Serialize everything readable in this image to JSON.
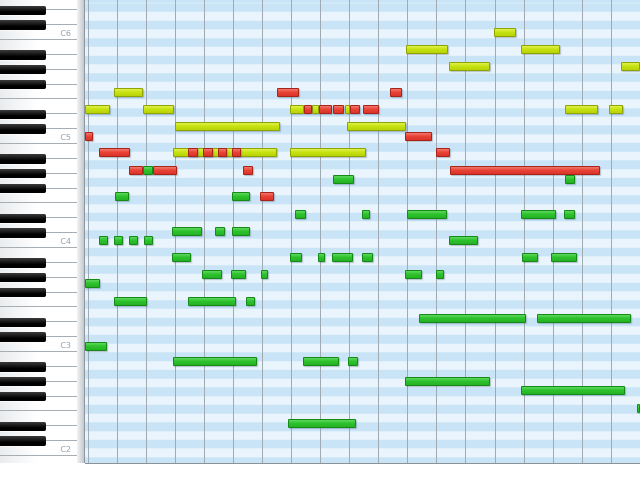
{
  "editor": {
    "title": "piano-roll-grid",
    "octave_labels": [
      "C6",
      "C5",
      "C4",
      "C3",
      "C2"
    ],
    "colors": {
      "note_yellow": "#c6e211",
      "note_yellow_border": "#8fa400",
      "note_red": "#e84436",
      "note_red_border": "#a8241a",
      "note_green": "#2dc32d",
      "note_green_border": "#168a16",
      "stripe_dark": "#c9e4f7",
      "stripe_light": "#e9f4fc",
      "grid_line": "#a0aab3",
      "white_key": "#ffffff",
      "black_key": "#000000",
      "octave_label_text": "#97a1ab"
    },
    "notes": {
      "yellow": [
        [
          494,
          28,
          22
        ],
        [
          406,
          45,
          42
        ],
        [
          521,
          45,
          39
        ],
        [
          449,
          62,
          41
        ],
        [
          621,
          62,
          19
        ],
        [
          114,
          88,
          29
        ],
        [
          85,
          105,
          25
        ],
        [
          143,
          105,
          31
        ],
        [
          290,
          105,
          14
        ],
        [
          312,
          105,
          7
        ],
        [
          345,
          105,
          5
        ],
        [
          565,
          105,
          33
        ],
        [
          609,
          105,
          14
        ],
        [
          175,
          122,
          105
        ],
        [
          347,
          122,
          59
        ],
        [
          173,
          148,
          104
        ],
        [
          290,
          148,
          76
        ]
      ],
      "red": [
        [
          277,
          88,
          22
        ],
        [
          390,
          88,
          12
        ],
        [
          304,
          105,
          8
        ],
        [
          319,
          105,
          13
        ],
        [
          333,
          105,
          11
        ],
        [
          350,
          105,
          10
        ],
        [
          363,
          105,
          16
        ],
        [
          85,
          132,
          8
        ],
        [
          405,
          132,
          27
        ],
        [
          99,
          148,
          31
        ],
        [
          188,
          148,
          10
        ],
        [
          203,
          148,
          10
        ],
        [
          218,
          148,
          9
        ],
        [
          232,
          148,
          9
        ],
        [
          436,
          148,
          14
        ],
        [
          129,
          166,
          14
        ],
        [
          153,
          166,
          24
        ],
        [
          243,
          166,
          10
        ],
        [
          450,
          166,
          150
        ],
        [
          260,
          192,
          14
        ]
      ],
      "green": [
        [
          143,
          166,
          10
        ],
        [
          333,
          175,
          21
        ],
        [
          565,
          175,
          10
        ],
        [
          115,
          192,
          14
        ],
        [
          232,
          192,
          18
        ],
        [
          295,
          210,
          11
        ],
        [
          362,
          210,
          8
        ],
        [
          407,
          210,
          40
        ],
        [
          521,
          210,
          35
        ],
        [
          564,
          210,
          11
        ],
        [
          172,
          227,
          30
        ],
        [
          215,
          227,
          10
        ],
        [
          232,
          227,
          18
        ],
        [
          99,
          236,
          9
        ],
        [
          114,
          236,
          9
        ],
        [
          129,
          236,
          9
        ],
        [
          144,
          236,
          9
        ],
        [
          449,
          236,
          29
        ],
        [
          172,
          253,
          19
        ],
        [
          290,
          253,
          12
        ],
        [
          318,
          253,
          7
        ],
        [
          332,
          253,
          21
        ],
        [
          362,
          253,
          11
        ],
        [
          522,
          253,
          16
        ],
        [
          551,
          253,
          26
        ],
        [
          202,
          270,
          20
        ],
        [
          231,
          270,
          15
        ],
        [
          261,
          270,
          7
        ],
        [
          405,
          270,
          17
        ],
        [
          436,
          270,
          8
        ],
        [
          85,
          279,
          15
        ],
        [
          114,
          297,
          33
        ],
        [
          188,
          297,
          48
        ],
        [
          246,
          297,
          9
        ],
        [
          419,
          314,
          107
        ],
        [
          537,
          314,
          94
        ],
        [
          85,
          342,
          22
        ],
        [
          173,
          357,
          84
        ],
        [
          303,
          357,
          36
        ],
        [
          348,
          357,
          10
        ],
        [
          405,
          377,
          85
        ],
        [
          521,
          386,
          104
        ],
        [
          637,
          404,
          3
        ],
        [
          288,
          419,
          68
        ]
      ]
    }
  }
}
